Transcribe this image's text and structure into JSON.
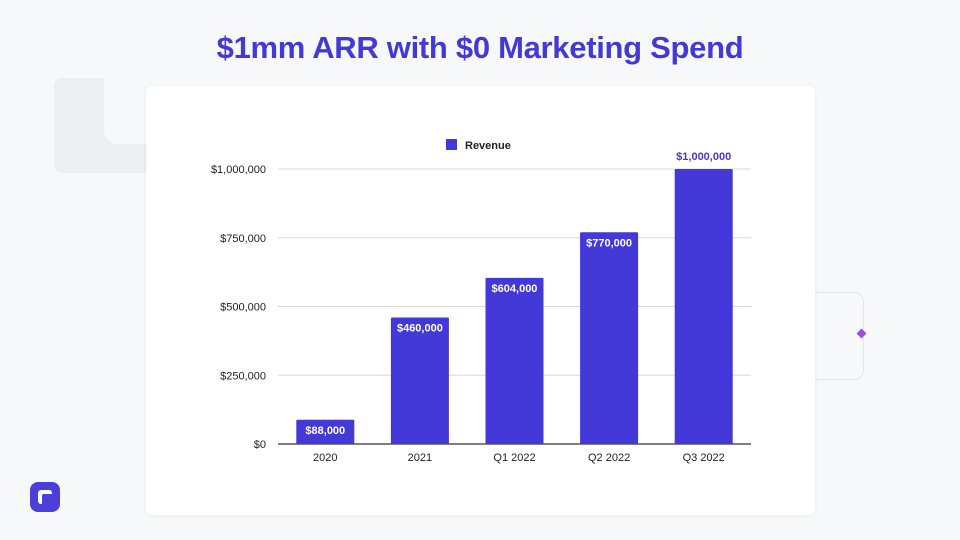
{
  "slide": {
    "title": "$1mm ARR with $0 Marketing Spend"
  },
  "colors": {
    "title": "#4338d8",
    "bar": "#4338d8",
    "axis_text": "#222222",
    "gridline": "#d9d9d9"
  },
  "chart_data": {
    "type": "bar",
    "categories": [
      "2020",
      "2021",
      "Q1 2022",
      "Q2 2022",
      "Q3 2022"
    ],
    "series": [
      {
        "name": "Revenue",
        "values": [
          88000,
          460000,
          604000,
          770000,
          1000000
        ],
        "data_labels": [
          "$88,000",
          "$460,000",
          "$604,000",
          "$770,000",
          "$1,000,000"
        ]
      }
    ],
    "y_ticks": [
      0,
      250000,
      500000,
      750000,
      1000000
    ],
    "y_tick_labels": [
      "$0",
      "$250,000",
      "$500,000",
      "$750,000",
      "$1,000,000"
    ],
    "ylim": [
      0,
      1000000
    ],
    "legend": "top",
    "grid": true
  },
  "icons": {
    "logo": "brand-logo-icon"
  }
}
